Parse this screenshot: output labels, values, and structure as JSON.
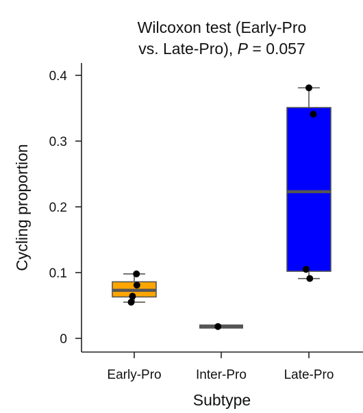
{
  "chart_data": {
    "type": "box",
    "title_line1": "Wilcoxon test (Early-Pro",
    "title_line2_prefix": "vs. Late-Pro), ",
    "title_p_symbol": "P",
    "title_p_value": " = 0.057",
    "xlabel": "Subtype",
    "ylabel": "Cycling proportion",
    "ylim": [
      0,
      0.4
    ],
    "yticks": [
      0,
      0.1,
      0.2,
      0.3,
      0.4
    ],
    "ytick_labels": [
      "0",
      "0.1",
      "0.2",
      "0.3",
      "0.4"
    ],
    "grid": false,
    "categories": [
      "Early-Pro",
      "Inter-Pro",
      "Late-Pro"
    ],
    "boxes": [
      {
        "category": "Early-Pro",
        "color": "#FFA500",
        "min": 0.055,
        "q1": 0.063,
        "median": 0.073,
        "q3": 0.086,
        "max": 0.098,
        "points": [
          {
            "y": 0.098,
            "j": 0.1
          },
          {
            "y": 0.081,
            "j": 0.12
          },
          {
            "y": 0.064,
            "j": -0.08
          },
          {
            "y": 0.055,
            "j": -0.14
          }
        ]
      },
      {
        "category": "Inter-Pro",
        "color": "#555555",
        "min": 0.018,
        "q1": 0.018,
        "median": 0.018,
        "q3": 0.018,
        "max": 0.018,
        "points": [
          {
            "y": 0.018,
            "j": -0.15
          }
        ]
      },
      {
        "category": "Late-Pro",
        "color": "#0000FF",
        "min": 0.091,
        "q1": 0.102,
        "median": 0.223,
        "q3": 0.351,
        "max": 0.381,
        "points": [
          {
            "y": 0.381,
            "j": 0.0
          },
          {
            "y": 0.341,
            "j": 0.2
          },
          {
            "y": 0.105,
            "j": -0.13
          },
          {
            "y": 0.091,
            "j": 0.04
          }
        ]
      }
    ]
  }
}
